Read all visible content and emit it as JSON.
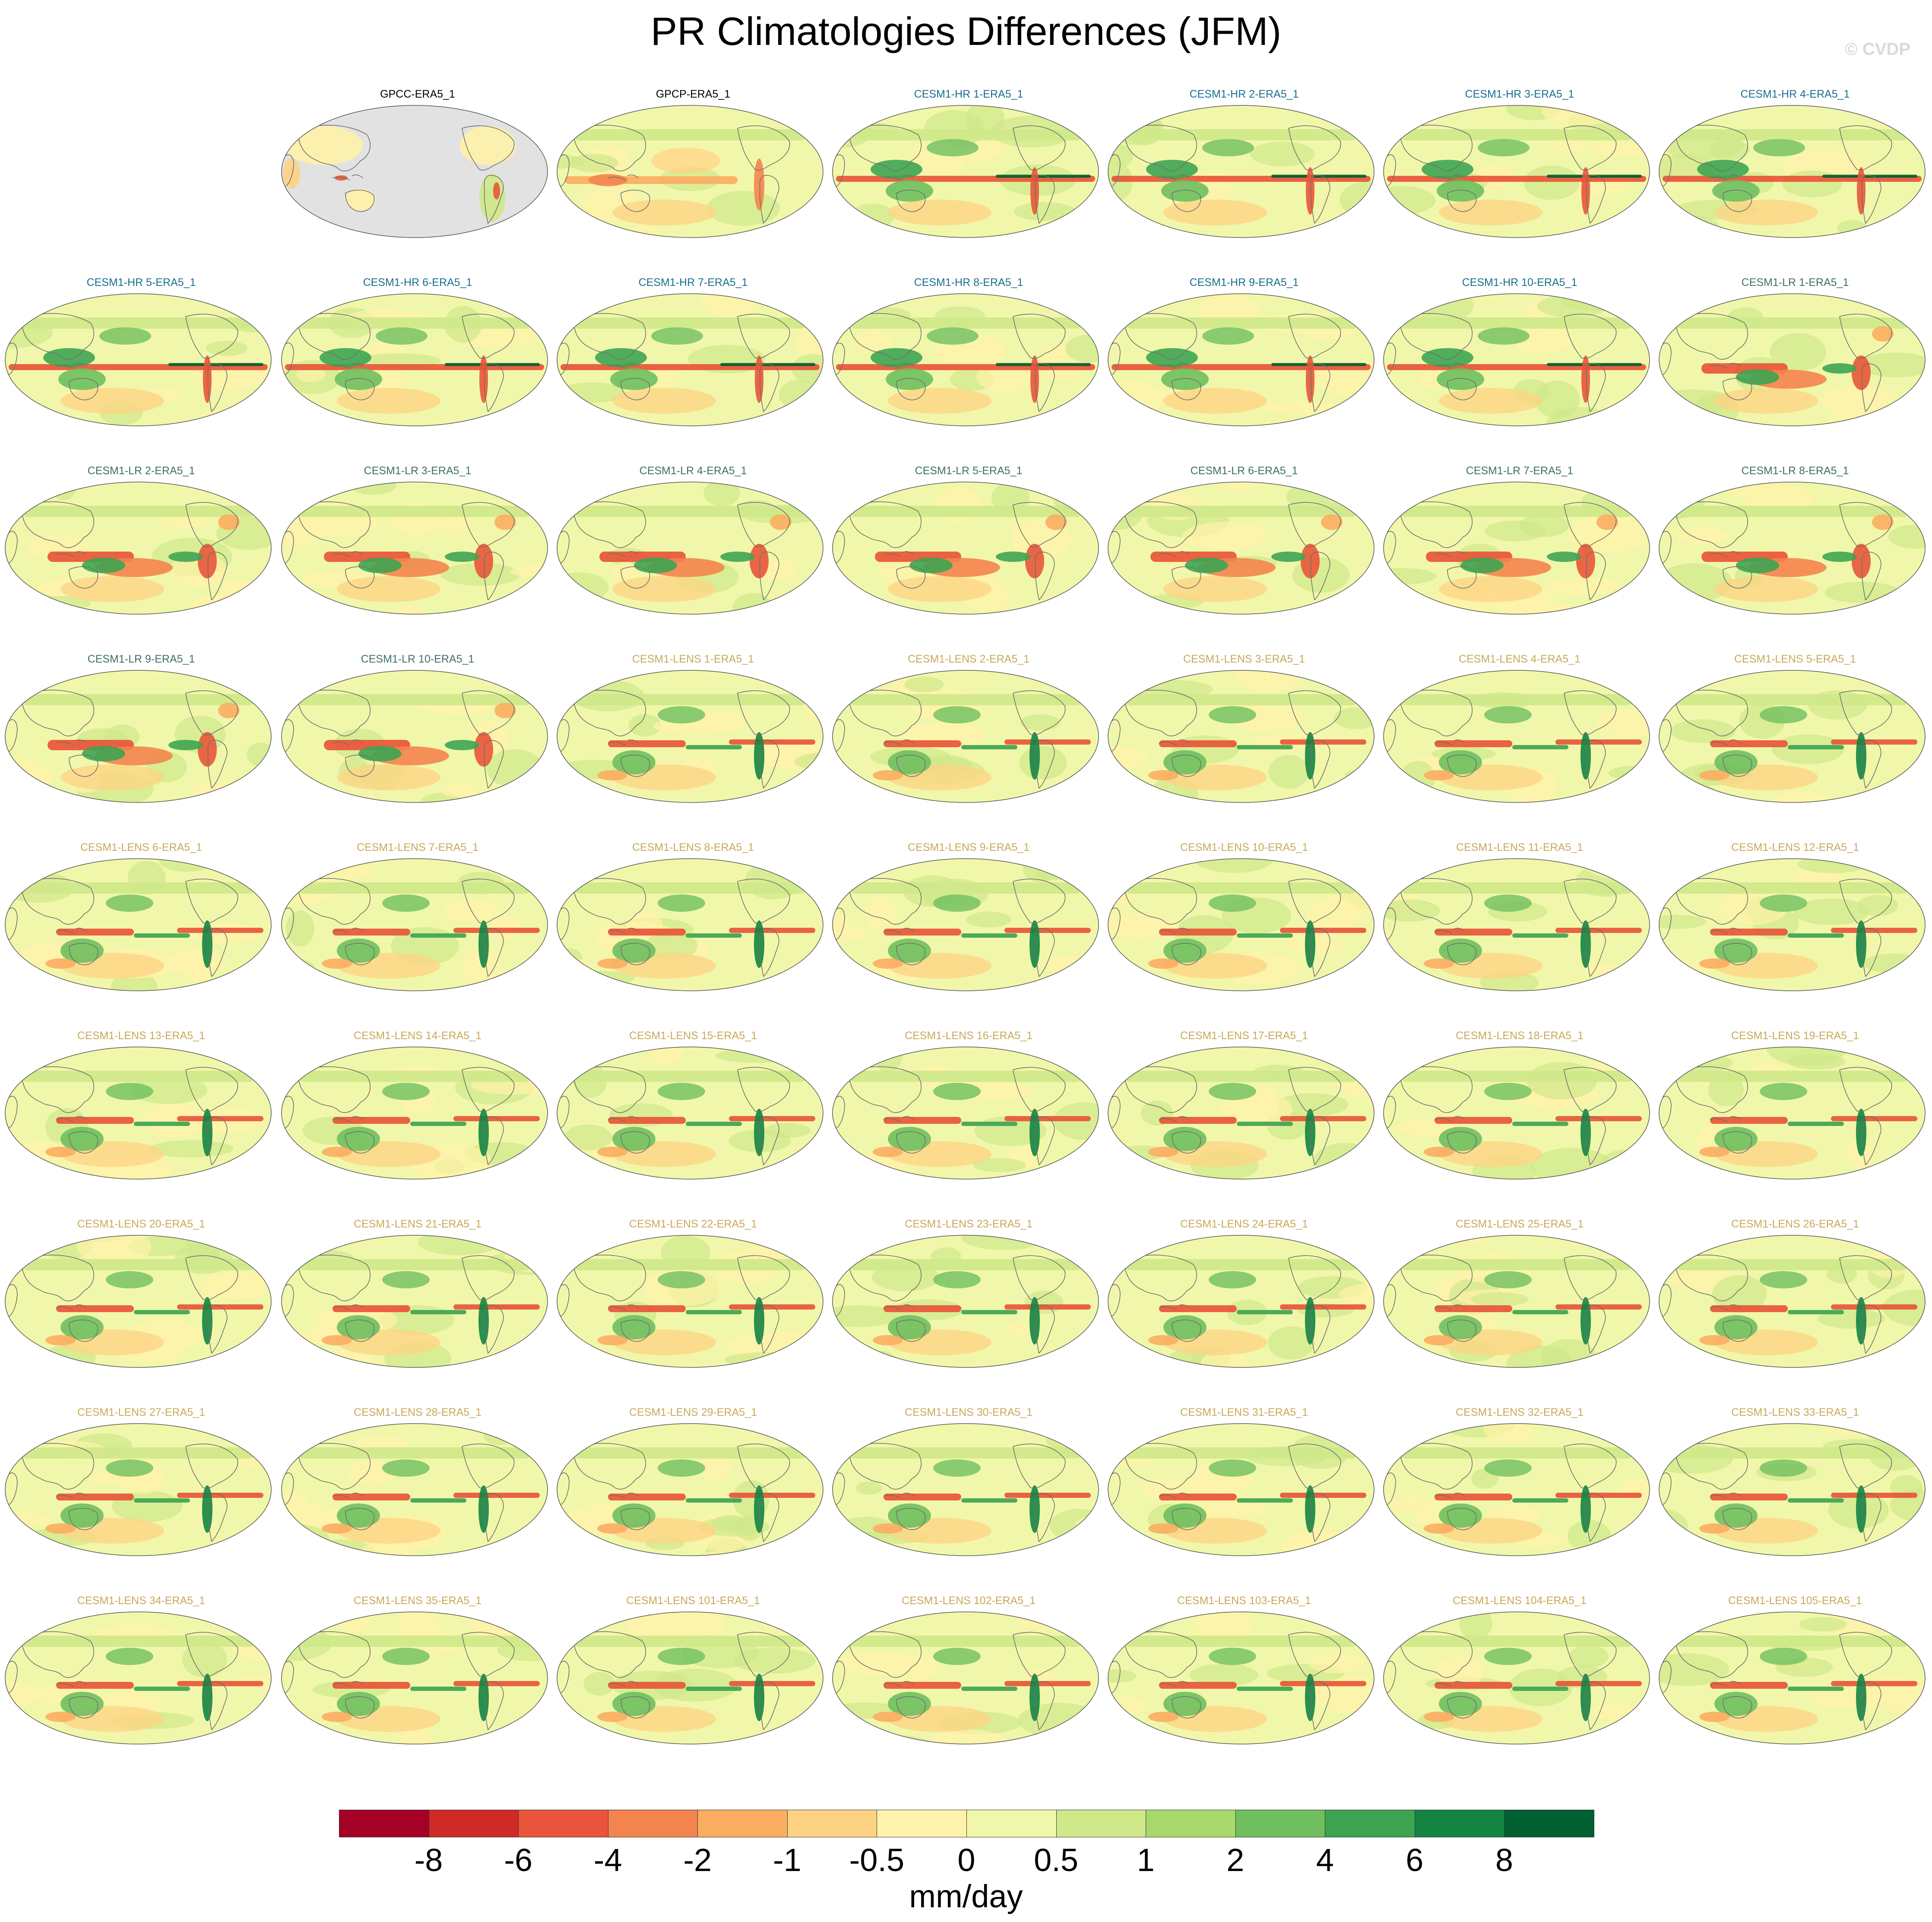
{
  "title": "PR Climatologies Differences (JFM)",
  "watermark": "© CVDP",
  "label_colors": {
    "obs": "#000000",
    "cesm1_hr": "#1a6e8e",
    "cesm1_lr": "#3f6f68",
    "cesm1_lens": "#c8a95a"
  },
  "panels": [
    {
      "label": "GPCC-ERA5_1",
      "group": "obs",
      "pattern": "gpcc"
    },
    {
      "label": "GPCP-ERA5_1",
      "group": "obs",
      "pattern": "gpcp"
    },
    {
      "label": "CESM1-HR 1-ERA5_1",
      "group": "cesm1_hr",
      "pattern": "hr"
    },
    {
      "label": "CESM1-HR 2-ERA5_1",
      "group": "cesm1_hr",
      "pattern": "hr"
    },
    {
      "label": "CESM1-HR 3-ERA5_1",
      "group": "cesm1_hr",
      "pattern": "hr"
    },
    {
      "label": "CESM1-HR 4-ERA5_1",
      "group": "cesm1_hr",
      "pattern": "hr"
    },
    {
      "label": "CESM1-HR 5-ERA5_1",
      "group": "cesm1_hr",
      "pattern": "hr"
    },
    {
      "label": "CESM1-HR 6-ERA5_1",
      "group": "cesm1_hr",
      "pattern": "hr"
    },
    {
      "label": "CESM1-HR 7-ERA5_1",
      "group": "cesm1_hr",
      "pattern": "hr"
    },
    {
      "label": "CESM1-HR 8-ERA5_1",
      "group": "cesm1_hr",
      "pattern": "hr"
    },
    {
      "label": "CESM1-HR 9-ERA5_1",
      "group": "cesm1_hr",
      "pattern": "hr"
    },
    {
      "label": "CESM1-HR 10-ERA5_1",
      "group": "cesm1_hr",
      "pattern": "hr"
    },
    {
      "label": "CESM1-LR 1-ERA5_1",
      "group": "cesm1_lr",
      "pattern": "lr"
    },
    {
      "label": "CESM1-LR 2-ERA5_1",
      "group": "cesm1_lr",
      "pattern": "lr"
    },
    {
      "label": "CESM1-LR 3-ERA5_1",
      "group": "cesm1_lr",
      "pattern": "lr"
    },
    {
      "label": "CESM1-LR 4-ERA5_1",
      "group": "cesm1_lr",
      "pattern": "lr"
    },
    {
      "label": "CESM1-LR 5-ERA5_1",
      "group": "cesm1_lr",
      "pattern": "lr"
    },
    {
      "label": "CESM1-LR 6-ERA5_1",
      "group": "cesm1_lr",
      "pattern": "lr"
    },
    {
      "label": "CESM1-LR 7-ERA5_1",
      "group": "cesm1_lr",
      "pattern": "lr"
    },
    {
      "label": "CESM1-LR 8-ERA5_1",
      "group": "cesm1_lr",
      "pattern": "lr"
    },
    {
      "label": "CESM1-LR 9-ERA5_1",
      "group": "cesm1_lr",
      "pattern": "lr"
    },
    {
      "label": "CESM1-LR 10-ERA5_1",
      "group": "cesm1_lr",
      "pattern": "lr"
    },
    {
      "label": "CESM1-LENS 1-ERA5_1",
      "group": "cesm1_lens",
      "pattern": "lens"
    },
    {
      "label": "CESM1-LENS 2-ERA5_1",
      "group": "cesm1_lens",
      "pattern": "lens"
    },
    {
      "label": "CESM1-LENS 3-ERA5_1",
      "group": "cesm1_lens",
      "pattern": "lens"
    },
    {
      "label": "CESM1-LENS 4-ERA5_1",
      "group": "cesm1_lens",
      "pattern": "lens"
    },
    {
      "label": "CESM1-LENS 5-ERA5_1",
      "group": "cesm1_lens",
      "pattern": "lens"
    },
    {
      "label": "CESM1-LENS 6-ERA5_1",
      "group": "cesm1_lens",
      "pattern": "lens"
    },
    {
      "label": "CESM1-LENS 7-ERA5_1",
      "group": "cesm1_lens",
      "pattern": "lens"
    },
    {
      "label": "CESM1-LENS 8-ERA5_1",
      "group": "cesm1_lens",
      "pattern": "lens"
    },
    {
      "label": "CESM1-LENS 9-ERA5_1",
      "group": "cesm1_lens",
      "pattern": "lens"
    },
    {
      "label": "CESM1-LENS 10-ERA5_1",
      "group": "cesm1_lens",
      "pattern": "lens"
    },
    {
      "label": "CESM1-LENS 11-ERA5_1",
      "group": "cesm1_lens",
      "pattern": "lens"
    },
    {
      "label": "CESM1-LENS 12-ERA5_1",
      "group": "cesm1_lens",
      "pattern": "lens"
    },
    {
      "label": "CESM1-LENS 13-ERA5_1",
      "group": "cesm1_lens",
      "pattern": "lens"
    },
    {
      "label": "CESM1-LENS 14-ERA5_1",
      "group": "cesm1_lens",
      "pattern": "lens"
    },
    {
      "label": "CESM1-LENS 15-ERA5_1",
      "group": "cesm1_lens",
      "pattern": "lens"
    },
    {
      "label": "CESM1-LENS 16-ERA5_1",
      "group": "cesm1_lens",
      "pattern": "lens"
    },
    {
      "label": "CESM1-LENS 17-ERA5_1",
      "group": "cesm1_lens",
      "pattern": "lens"
    },
    {
      "label": "CESM1-LENS 18-ERA5_1",
      "group": "cesm1_lens",
      "pattern": "lens"
    },
    {
      "label": "CESM1-LENS 19-ERA5_1",
      "group": "cesm1_lens",
      "pattern": "lens"
    },
    {
      "label": "CESM1-LENS 20-ERA5_1",
      "group": "cesm1_lens",
      "pattern": "lens"
    },
    {
      "label": "CESM1-LENS 21-ERA5_1",
      "group": "cesm1_lens",
      "pattern": "lens"
    },
    {
      "label": "CESM1-LENS 22-ERA5_1",
      "group": "cesm1_lens",
      "pattern": "lens"
    },
    {
      "label": "CESM1-LENS 23-ERA5_1",
      "group": "cesm1_lens",
      "pattern": "lens"
    },
    {
      "label": "CESM1-LENS 24-ERA5_1",
      "group": "cesm1_lens",
      "pattern": "lens"
    },
    {
      "label": "CESM1-LENS 25-ERA5_1",
      "group": "cesm1_lens",
      "pattern": "lens"
    },
    {
      "label": "CESM1-LENS 26-ERA5_1",
      "group": "cesm1_lens",
      "pattern": "lens"
    },
    {
      "label": "CESM1-LENS 27-ERA5_1",
      "group": "cesm1_lens",
      "pattern": "lens"
    },
    {
      "label": "CESM1-LENS 28-ERA5_1",
      "group": "cesm1_lens",
      "pattern": "lens"
    },
    {
      "label": "CESM1-LENS 29-ERA5_1",
      "group": "cesm1_lens",
      "pattern": "lens"
    },
    {
      "label": "CESM1-LENS 30-ERA5_1",
      "group": "cesm1_lens",
      "pattern": "lens"
    },
    {
      "label": "CESM1-LENS 31-ERA5_1",
      "group": "cesm1_lens",
      "pattern": "lens"
    },
    {
      "label": "CESM1-LENS 32-ERA5_1",
      "group": "cesm1_lens",
      "pattern": "lens"
    },
    {
      "label": "CESM1-LENS 33-ERA5_1",
      "group": "cesm1_lens",
      "pattern": "lens"
    },
    {
      "label": "CESM1-LENS 34-ERA5_1",
      "group": "cesm1_lens",
      "pattern": "lens"
    },
    {
      "label": "CESM1-LENS 35-ERA5_1",
      "group": "cesm1_lens",
      "pattern": "lens"
    },
    {
      "label": "CESM1-LENS 101-ERA5_1",
      "group": "cesm1_lens",
      "pattern": "lens"
    },
    {
      "label": "CESM1-LENS 102-ERA5_1",
      "group": "cesm1_lens",
      "pattern": "lens"
    },
    {
      "label": "CESM1-LENS 103-ERA5_1",
      "group": "cesm1_lens",
      "pattern": "lens"
    },
    {
      "label": "CESM1-LENS 104-ERA5_1",
      "group": "cesm1_lens",
      "pattern": "lens"
    },
    {
      "label": "CESM1-LENS 105-ERA5_1",
      "group": "cesm1_lens",
      "pattern": "lens"
    }
  ],
  "colorbar": {
    "colors": [
      "#a50026",
      "#cf2a27",
      "#e8553a",
      "#f4844e",
      "#fbad62",
      "#fdd383",
      "#fff2aa",
      "#f1f7aa",
      "#cfe88a",
      "#a8d86c",
      "#6fbf5f",
      "#3ea452",
      "#138442",
      "#006030"
    ],
    "tick_labels": [
      "-8",
      "-6",
      "-4",
      "-2",
      "-1",
      "-0.5",
      "0",
      "0.5",
      "1",
      "2",
      "4",
      "6",
      "8"
    ],
    "units": "mm/day"
  },
  "land_mask_color": "#e2e2e2"
}
